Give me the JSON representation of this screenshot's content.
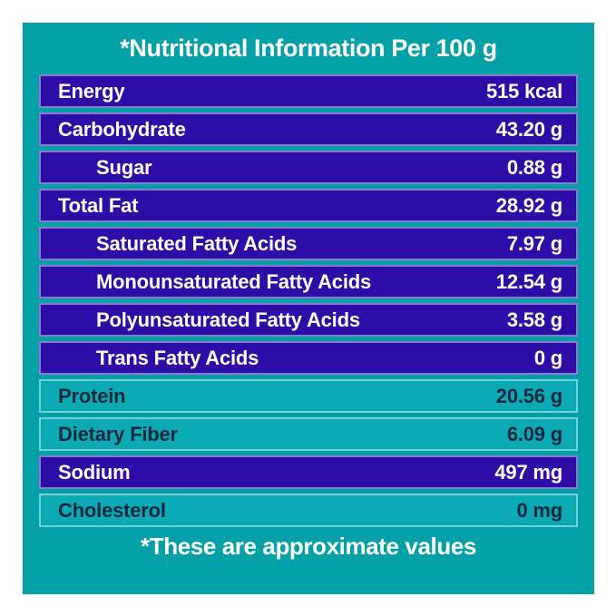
{
  "title": "*Nutritional Information Per 100 g",
  "footer": "*These are approximate values",
  "colors": {
    "page_bg": "#ffffff",
    "panel_bg": "#04a0a7",
    "row_blue_bg": "#2d0da5",
    "row_teal_bg": "#0aa9b4",
    "row_border": "rgba(255,255,255,0.45)",
    "text_light": "#ffffff",
    "text_dark": "#0f2740"
  },
  "table": {
    "rows": [
      {
        "label": "Energy",
        "value": "515 kcal",
        "variant": "blue",
        "indent": false
      },
      {
        "label": "Carbohydrate",
        "value": "43.20 g",
        "variant": "blue",
        "indent": false
      },
      {
        "label": "Sugar",
        "value": "0.88 g",
        "variant": "blue",
        "indent": true
      },
      {
        "label": "Total Fat",
        "value": "28.92 g",
        "variant": "blue",
        "indent": false
      },
      {
        "label": "Saturated Fatty Acids",
        "value": "7.97 g",
        "variant": "blue",
        "indent": true
      },
      {
        "label": "Monounsaturated Fatty Acids",
        "value": "12.54 g",
        "variant": "blue",
        "indent": true
      },
      {
        "label": "Polyunsaturated Fatty Acids",
        "value": "3.58 g",
        "variant": "blue",
        "indent": true
      },
      {
        "label": "Trans Fatty Acids",
        "value": "0 g",
        "variant": "blue",
        "indent": true
      },
      {
        "label": "Protein",
        "value": "20.56 g",
        "variant": "teal",
        "indent": false
      },
      {
        "label": "Dietary Fiber",
        "value": "6.09 g",
        "variant": "teal",
        "indent": false
      },
      {
        "label": "Sodium",
        "value": "497 mg",
        "variant": "blue",
        "indent": false
      },
      {
        "label": "Cholesterol",
        "value": "0 mg",
        "variant": "teal",
        "indent": false
      }
    ]
  }
}
